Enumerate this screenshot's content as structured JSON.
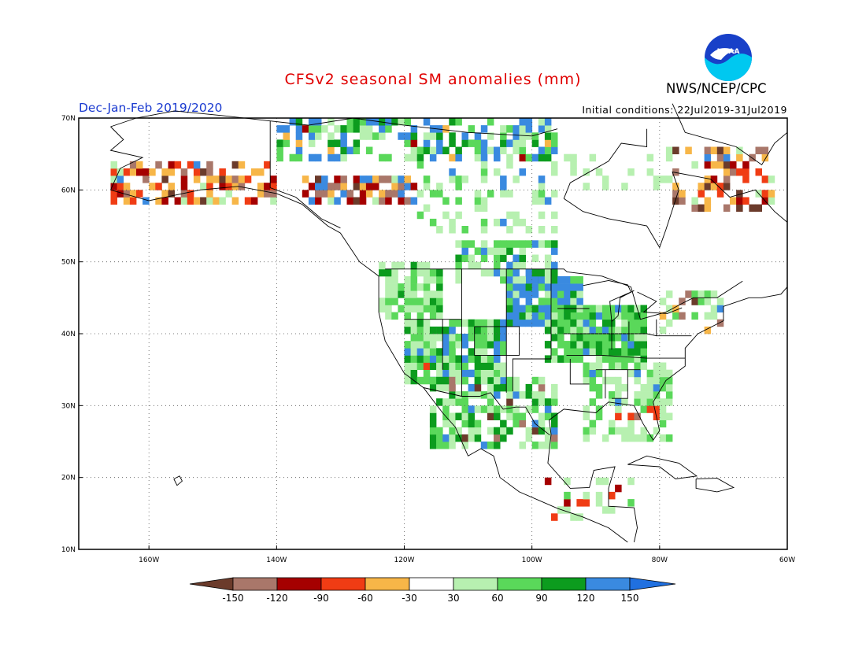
{
  "header": {
    "title": "CFSv2 seasonal SM anomalies (mm)",
    "season": "Dec-Jan-Feb 2019/2020",
    "initial_conditions": "Initial conditions: 22Jul2019-31Jul2019",
    "agency": "NWS/NCEP/CPC",
    "logo_text": "NOAA"
  },
  "map": {
    "lat_labels": [
      "70N",
      "60N",
      "50N",
      "40N",
      "30N",
      "20N",
      "10N"
    ],
    "lon_labels": [
      "160W",
      "140W",
      "120W",
      "100W",
      "80W",
      "60W"
    ],
    "lat_range": [
      10,
      70
    ],
    "lon_range": [
      -171,
      -60
    ]
  },
  "legend": {
    "labels": [
      "-150",
      "-120",
      "-90",
      "-60",
      "-30",
      "30",
      "60",
      "90",
      "120",
      "150"
    ],
    "colors": [
      "#6b3b2b",
      "#a9776a",
      "#a50000",
      "#f03c14",
      "#f7b648",
      "#ffffff",
      "#b7f0b0",
      "#5ad85a",
      "#0c9c1e",
      "#3a8ae0",
      "#2070e0"
    ]
  },
  "chart_data": {
    "type": "heatmap",
    "title": "CFSv2 seasonal SM anomalies (mm)",
    "units": "mm",
    "color_scale_bins": [
      -150,
      -120,
      -90,
      -60,
      -30,
      30,
      60,
      90,
      120,
      150
    ],
    "regions": [
      {
        "region": "Northern Plains / Upper Midwest",
        "anomaly_bin": "120 to 150"
      },
      {
        "region": "Central Rockies / Great Basin",
        "anomaly_bin": "60 to 150"
      },
      {
        "region": "Midwest / Ohio Valley",
        "anomaly_bin": "60 to 120"
      },
      {
        "region": "Southeast US",
        "anomaly_bin": "30 to 90"
      },
      {
        "region": "Northern Mexico",
        "anomaly_bin": "30 to 120"
      },
      {
        "region": "Southern Alaska / Yukon",
        "anomaly_bin": "-150 to -30"
      },
      {
        "region": "Northern Canada (Arctic coast)",
        "anomaly_bin": "30 to 150"
      },
      {
        "region": "Labrador / Quebec coast",
        "anomaly_bin": "-120 to -30"
      }
    ]
  }
}
